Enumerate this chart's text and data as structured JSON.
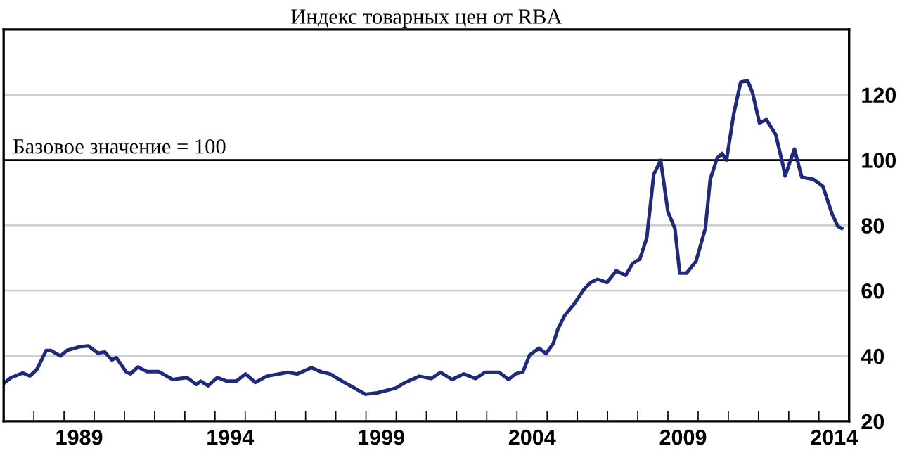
{
  "chart_data": {
    "type": "line",
    "title": "Индекс товарных цен от RBA",
    "x": [
      1987.0,
      1987.25,
      1987.63,
      1987.87,
      1988.1,
      1988.41,
      1988.56,
      1988.88,
      1989.1,
      1989.5,
      1989.81,
      1990.12,
      1990.35,
      1990.58,
      1990.73,
      1991.05,
      1991.2,
      1991.44,
      1991.75,
      1992.14,
      1992.6,
      1993.07,
      1993.38,
      1993.53,
      1993.77,
      1994.08,
      1994.39,
      1994.71,
      1995.01,
      1995.33,
      1995.71,
      1996.41,
      1996.72,
      1997.19,
      1997.5,
      1997.81,
      1998.28,
      1998.75,
      1998.98,
      1999.37,
      1999.99,
      2000.3,
      2000.77,
      2001.16,
      2001.47,
      2001.85,
      2002.24,
      2002.63,
      2002.94,
      2003.41,
      2003.72,
      2003.95,
      2004.2,
      2004.42,
      2004.73,
      2004.96,
      2005.2,
      2005.35,
      2005.58,
      2005.9,
      2006.21,
      2006.44,
      2006.67,
      2006.98,
      2007.29,
      2007.6,
      2007.83,
      2008.07,
      2008.3,
      2008.53,
      2008.76,
      2009.0,
      2009.23,
      2009.39,
      2009.62,
      2009.93,
      2010.24,
      2010.4,
      2010.63,
      2010.79,
      2010.94,
      2011.18,
      2011.41,
      2011.64,
      2011.8,
      2012.03,
      2012.26,
      2012.57,
      2012.81,
      2012.88,
      2013.19,
      2013.43,
      2013.82,
      2014.13,
      2014.44,
      2014.63,
      2014.75
    ],
    "series": [
      {
        "color": "#1f2a7a",
        "values": [
          31.6,
          33.4,
          34.8,
          33.9,
          35.9,
          41.7,
          41.7,
          40,
          41.7,
          42.8,
          43.1,
          40.9,
          41.2,
          38.8,
          39.5,
          35.2,
          34.5,
          36.6,
          35.2,
          35.2,
          32.8,
          33.4,
          31.3,
          32.3,
          30.9,
          33.4,
          32.3,
          32.3,
          34.5,
          31.9,
          33.8,
          35.0,
          34.5,
          36.4,
          35.2,
          34.5,
          31.9,
          29.5,
          28.3,
          28.7,
          30.2,
          31.9,
          33.8,
          33.1,
          35.0,
          32.8,
          34.5,
          33.1,
          35.0,
          35.0,
          32.8,
          34.5,
          35.2,
          40.3,
          42.4,
          40.7,
          43.8,
          48.1,
          52.4,
          56.0,
          60.3,
          62.5,
          63.5,
          62.5,
          66.1,
          64.7,
          68.3,
          69.7,
          76.2,
          95.6,
          99.9,
          84.1,
          79.1,
          65.4,
          65.4,
          69.0,
          79.1,
          94.1,
          100.6,
          102.0,
          100.0,
          114.2,
          123.9,
          124.3,
          120.7,
          111.4,
          112.4,
          107.8,
          98.4,
          95.1,
          103.4,
          94.8,
          94.1,
          92.0,
          83.4,
          79.7,
          79.1
        ]
      }
    ],
    "xlim": [
      1987.0,
      2015.0
    ],
    "xticks": [
      {
        "value": 1988,
        "label": null
      },
      {
        "value": 1989,
        "label": null
      },
      {
        "value": 1989.5,
        "label": "1989"
      },
      {
        "value": 1990,
        "label": null
      },
      {
        "value": 1991,
        "label": null
      },
      {
        "value": 1992,
        "label": null
      },
      {
        "value": 1993,
        "label": null
      },
      {
        "value": 1994,
        "label": null
      },
      {
        "value": 1994.5,
        "label": "1994"
      },
      {
        "value": 1995,
        "label": null
      },
      {
        "value": 1996,
        "label": null
      },
      {
        "value": 1997,
        "label": null
      },
      {
        "value": 1998,
        "label": null
      },
      {
        "value": 1999,
        "label": null
      },
      {
        "value": 1999.5,
        "label": "1999"
      },
      {
        "value": 2000,
        "label": null
      },
      {
        "value": 2001,
        "label": null
      },
      {
        "value": 2002,
        "label": null
      },
      {
        "value": 2003,
        "label": null
      },
      {
        "value": 2004,
        "label": null
      },
      {
        "value": 2004.5,
        "label": "2004"
      },
      {
        "value": 2005,
        "label": null
      },
      {
        "value": 2006,
        "label": null
      },
      {
        "value": 2007,
        "label": null
      },
      {
        "value": 2008,
        "label": null
      },
      {
        "value": 2009,
        "label": null
      },
      {
        "value": 2009.5,
        "label": "2009"
      },
      {
        "value": 2010,
        "label": null
      },
      {
        "value": 2011,
        "label": null
      },
      {
        "value": 2012,
        "label": null
      },
      {
        "value": 2013,
        "label": null
      },
      {
        "value": 2014,
        "label": null
      },
      {
        "value": 2014.5,
        "label": "2014"
      }
    ],
    "ylim": [
      20,
      140
    ],
    "yticks": [
      20,
      40,
      60,
      80,
      100,
      120
    ],
    "grid": "y",
    "line_style": "solid",
    "marker": "none",
    "legend": false,
    "ref_lines": [
      {
        "axis": "y",
        "value": 100,
        "label": "Базовое значение = 100",
        "color": "#000000"
      }
    ]
  }
}
